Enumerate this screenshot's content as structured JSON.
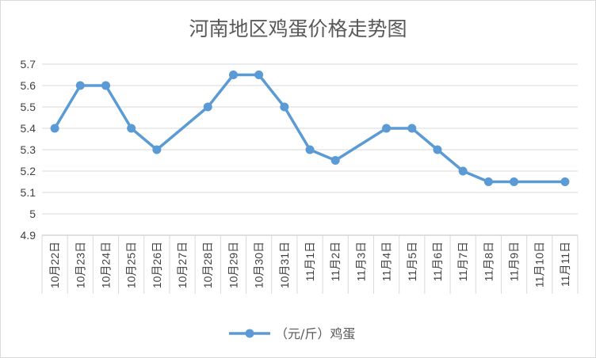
{
  "chart_data": {
    "type": "line",
    "title": "河南地区鸡蛋价格走势图",
    "xlabel": "",
    "ylabel": "",
    "categories": [
      "10月22日",
      "10月23日",
      "10月24日",
      "10月25日",
      "10月26日",
      "10月27日",
      "10月28日",
      "10月29日",
      "10月30日",
      "10月31日",
      "11月1日",
      "11月2日",
      "11月3日",
      "11月4日",
      "11月5日",
      "11月6日",
      "11月7日",
      "11月8日",
      "11月9日",
      "11月10日",
      "11月11日"
    ],
    "series": [
      {
        "name": "（元/斤）鸡蛋",
        "values": [
          5.4,
          5.6,
          5.6,
          5.4,
          5.3,
          null,
          5.5,
          5.65,
          5.65,
          5.5,
          5.3,
          5.25,
          null,
          5.4,
          5.4,
          5.3,
          5.2,
          5.15,
          5.15,
          null,
          5.15
        ],
        "color": "#5b9bd5"
      }
    ],
    "ylim": [
      4.9,
      5.7
    ],
    "yticks": [
      "4.9",
      "5",
      "5.1",
      "5.2",
      "5.3",
      "5.4",
      "5.5",
      "5.6",
      "5.7"
    ],
    "grid": true,
    "legend": "bottom-center",
    "gaps": "connected"
  }
}
